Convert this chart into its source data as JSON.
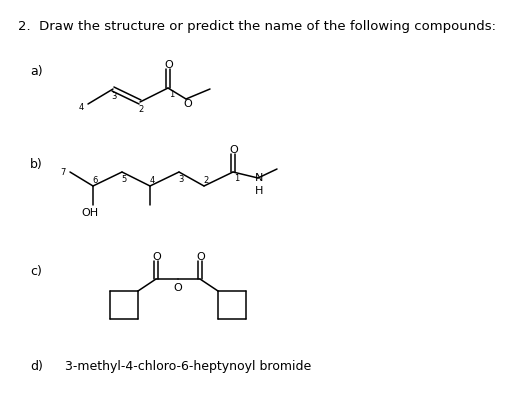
{
  "title": "2.  Draw the structure or predict the name of the following compounds:",
  "bg_color": "#ffffff",
  "line_color": "#000000",
  "label_a": "a)",
  "label_b": "b)",
  "label_c": "c)",
  "label_d": "d)",
  "label_d_text": "3-methyl-4-chloro-6-heptynoyl bromide",
  "font_size_title": 9.5,
  "font_size_labels": 9,
  "font_size_numbers": 6,
  "font_size_atoms": 8,
  "lw": 1.1
}
